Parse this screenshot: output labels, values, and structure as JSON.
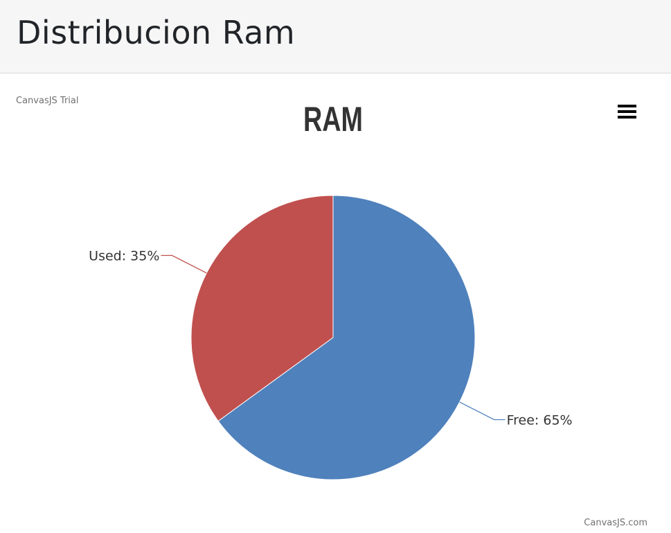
{
  "header": {
    "title": "Distribucion Ram"
  },
  "chart_meta": {
    "trial_text": "CanvasJS Trial",
    "credit_text": "CanvasJS.com",
    "menu_icon": "hamburger-menu-icon"
  },
  "chart_data": {
    "type": "pie",
    "title": "RAM",
    "label_format": "{label}: {value}%",
    "slices": [
      {
        "label": "Free",
        "value": 65,
        "color": "#4f81bc"
      },
      {
        "label": "Used",
        "value": 35,
        "color": "#c0504e"
      }
    ],
    "start_angle_deg": -90
  }
}
